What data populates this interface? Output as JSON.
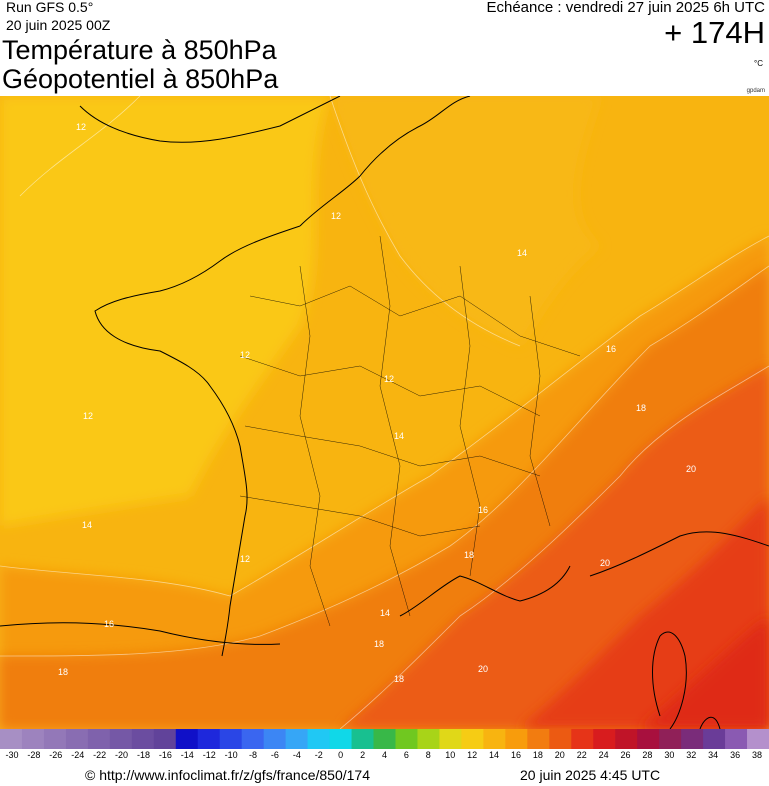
{
  "header": {
    "run": "Run GFS 0.5°",
    "run_date": "20 juin 2025 00Z",
    "title_line1": "Température à 850hPa",
    "title_line2": "Géopotentiel à 850hPa",
    "echeance": "Echéance : vendredi 27 juin 2025 6h UTC",
    "offset": "+ 174H",
    "unit": "°C",
    "credit": "gpdam"
  },
  "map": {
    "region": "France",
    "variable": "temperature_850hPa",
    "contour_labels": [
      "12",
      "12",
      "12",
      "12",
      "12",
      "12",
      "14",
      "14",
      "14",
      "14",
      "16",
      "16",
      "16",
      "18",
      "18",
      "18",
      "18",
      "18",
      "20",
      "20",
      "20"
    ]
  },
  "colorbar": {
    "ticks": [
      "-30",
      "-28",
      "-26",
      "-24",
      "-22",
      "-20",
      "-18",
      "-16",
      "-14",
      "-12",
      "-10",
      "-8",
      "-6",
      "-4",
      "-2",
      "0",
      "2",
      "4",
      "6",
      "8",
      "10",
      "12",
      "14",
      "16",
      "18",
      "20",
      "22",
      "24",
      "26",
      "28",
      "30",
      "32",
      "34",
      "36",
      "38"
    ],
    "colors": [
      "#a78fc4",
      "#9d83be",
      "#9378b8",
      "#896db2",
      "#7f62ac",
      "#7558a6",
      "#6b4da0",
      "#61439a",
      "#1010c8",
      "#1e28dc",
      "#2a46e6",
      "#3a66f0",
      "#3c86f4",
      "#36a6f6",
      "#20c8f4",
      "#10d8e8",
      "#18c090",
      "#38b848",
      "#70c820",
      "#a8d418",
      "#e0d818",
      "#f6cc14",
      "#f8b410",
      "#f89c0c",
      "#f27c10",
      "#ec5a12",
      "#e63418",
      "#d81c1e",
      "#c01428",
      "#a8103e",
      "#902058",
      "#7a2c7a",
      "#6a3c98",
      "#8a5ab2",
      "#b490cc"
    ]
  },
  "footer": {
    "url": "© http://www.infoclimat.fr/z/gfs/france/850/174",
    "date": "20 juin 2025  4:45 UTC"
  }
}
